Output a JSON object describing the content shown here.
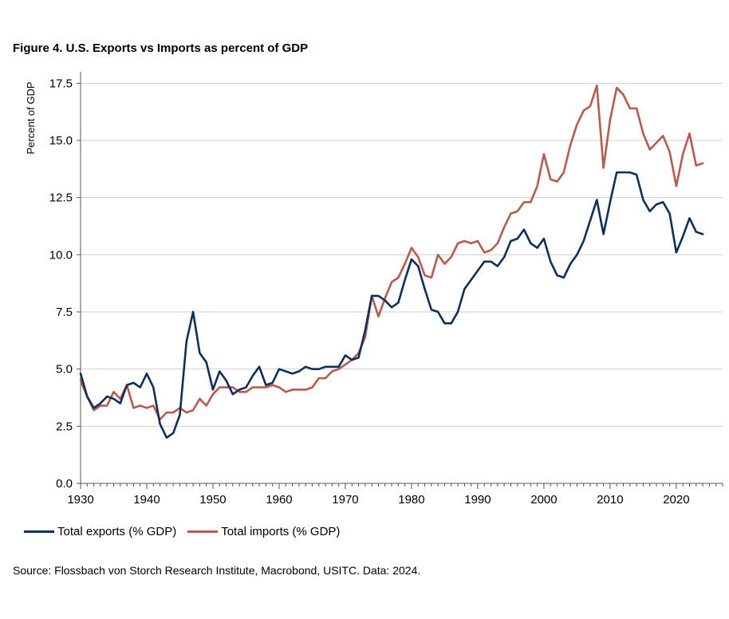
{
  "title": "Figure 4. U.S. Exports vs Imports as percent of GDP",
  "source": "Source: Flossbach von Storch Research Institute, Macrobond, USITC. Data: 2024.",
  "chart_data": {
    "type": "line",
    "title": "Figure 4. U.S. Exports vs Imports as percent of GDP",
    "xlabel": "",
    "ylabel": "Percent of GDP",
    "xlim": [
      1930,
      2027
    ],
    "ylim": [
      0,
      18
    ],
    "x_ticks": [
      1930,
      1940,
      1950,
      1960,
      1970,
      1980,
      1990,
      2000,
      2010,
      2020
    ],
    "y_ticks": [
      0.0,
      2.5,
      5.0,
      7.5,
      10.0,
      12.5,
      15.0,
      17.5
    ],
    "y_tick_labels": [
      "0.0",
      "2.5",
      "5.0",
      "7.5",
      "10.0",
      "12.5",
      "15.0",
      "17.5"
    ],
    "grid": "horizontal",
    "legend_position": "bottom-left",
    "x": [
      1930,
      1931,
      1932,
      1933,
      1934,
      1935,
      1936,
      1937,
      1938,
      1939,
      1940,
      1941,
      1942,
      1943,
      1944,
      1945,
      1946,
      1947,
      1948,
      1949,
      1950,
      1951,
      1952,
      1953,
      1954,
      1955,
      1956,
      1957,
      1958,
      1959,
      1960,
      1961,
      1962,
      1963,
      1964,
      1965,
      1966,
      1967,
      1968,
      1969,
      1970,
      1971,
      1972,
      1973,
      1974,
      1975,
      1976,
      1977,
      1978,
      1979,
      1980,
      1981,
      1982,
      1983,
      1984,
      1985,
      1986,
      1987,
      1988,
      1989,
      1990,
      1991,
      1992,
      1993,
      1994,
      1995,
      1996,
      1997,
      1998,
      1999,
      2000,
      2001,
      2002,
      2003,
      2004,
      2005,
      2006,
      2007,
      2008,
      2009,
      2010,
      2011,
      2012,
      2013,
      2014,
      2015,
      2016,
      2017,
      2018,
      2019,
      2020,
      2021,
      2022,
      2023,
      2024
    ],
    "series": [
      {
        "name": "Total exports (% GDP)",
        "color": "#0b2f5e",
        "values": [
          4.8,
          3.8,
          3.3,
          3.5,
          3.8,
          3.7,
          3.5,
          4.3,
          4.4,
          4.2,
          4.8,
          4.2,
          2.6,
          2.0,
          2.2,
          3.0,
          6.2,
          7.5,
          5.7,
          5.3,
          4.1,
          4.9,
          4.5,
          3.9,
          4.1,
          4.2,
          4.7,
          5.1,
          4.3,
          4.4,
          5.0,
          4.9,
          4.8,
          4.9,
          5.1,
          5.0,
          5.0,
          5.1,
          5.1,
          5.1,
          5.6,
          5.4,
          5.5,
          6.7,
          8.2,
          8.2,
          8.0,
          7.7,
          7.9,
          8.9,
          9.8,
          9.5,
          8.5,
          7.6,
          7.5,
          7.0,
          7.0,
          7.5,
          8.5,
          8.9,
          9.3,
          9.7,
          9.7,
          9.5,
          9.9,
          10.6,
          10.7,
          11.1,
          10.5,
          10.3,
          10.7,
          9.7,
          9.1,
          9.0,
          9.6,
          10.0,
          10.6,
          11.5,
          12.4,
          10.9,
          12.3,
          13.6,
          13.6,
          13.6,
          13.5,
          12.4,
          11.9,
          12.2,
          12.3,
          11.8,
          10.1,
          10.8,
          11.6,
          11.0,
          10.9
        ]
      },
      {
        "name": "Total imports (% GDP)",
        "color": "#bb5a4a",
        "values": [
          4.5,
          3.8,
          3.2,
          3.4,
          3.4,
          4.0,
          3.7,
          4.3,
          3.3,
          3.4,
          3.3,
          3.4,
          2.8,
          3.1,
          3.1,
          3.3,
          3.1,
          3.2,
          3.7,
          3.4,
          3.9,
          4.2,
          4.2,
          4.2,
          4.0,
          4.0,
          4.2,
          4.2,
          4.2,
          4.3,
          4.2,
          4.0,
          4.1,
          4.1,
          4.1,
          4.2,
          4.6,
          4.6,
          4.9,
          5.0,
          5.2,
          5.4,
          5.7,
          6.4,
          8.2,
          7.3,
          8.1,
          8.8,
          9.0,
          9.6,
          10.3,
          9.9,
          9.1,
          9.0,
          10.0,
          9.6,
          9.9,
          10.5,
          10.6,
          10.5,
          10.6,
          10.1,
          10.2,
          10.5,
          11.2,
          11.8,
          11.9,
          12.3,
          12.3,
          13.0,
          14.4,
          13.3,
          13.2,
          13.6,
          14.8,
          15.7,
          16.3,
          16.5,
          17.4,
          13.8,
          15.9,
          17.3,
          17.0,
          16.4,
          16.4,
          15.3,
          14.6,
          14.9,
          15.2,
          14.5,
          13.0,
          14.4,
          15.3,
          13.9,
          14.0
        ]
      }
    ]
  }
}
